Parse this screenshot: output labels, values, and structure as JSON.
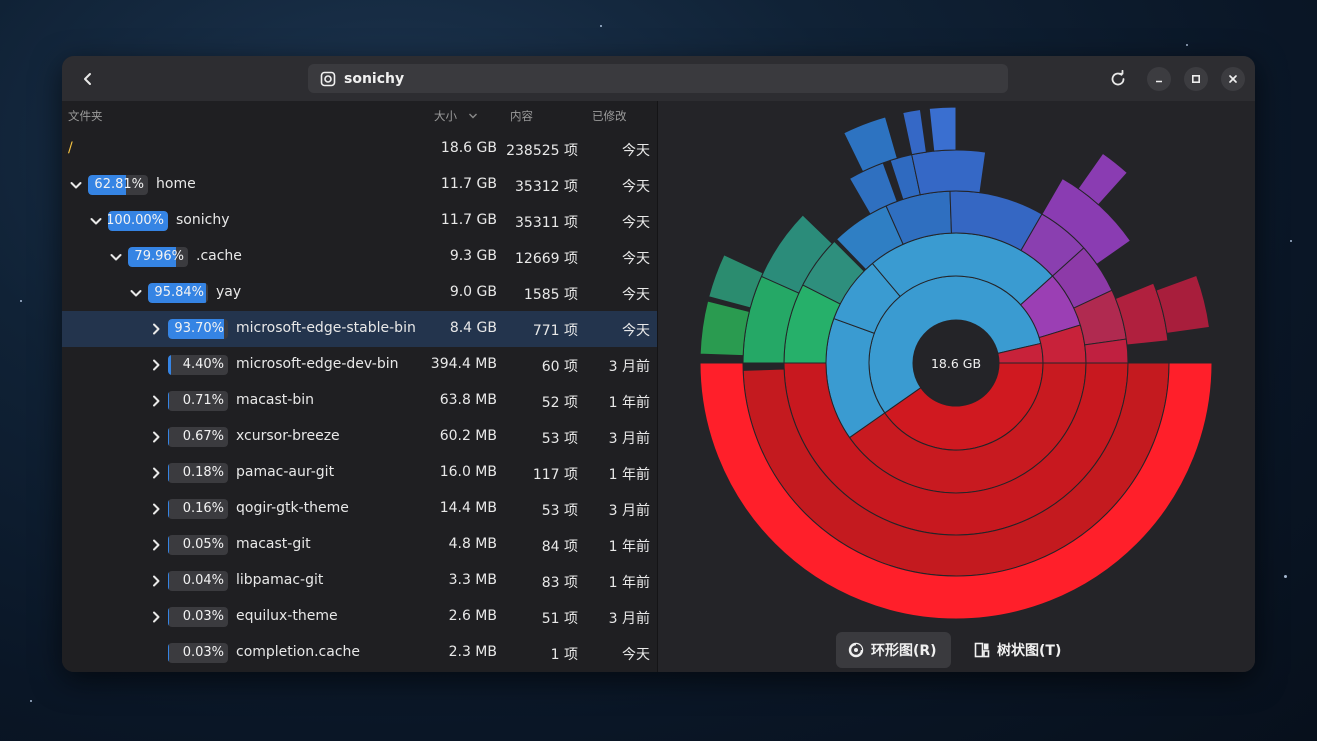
{
  "header": {
    "title": "sonichy"
  },
  "columns": {
    "folder": "文件夹",
    "size": "大小",
    "contents": "内容",
    "modified": "已修改"
  },
  "rows": [
    {
      "level": 0,
      "expander": "none",
      "percent": "",
      "fill": 0,
      "name": "/",
      "size": "18.6 GB",
      "items": "238525 项",
      "modified": "今天",
      "root": true
    },
    {
      "level": 1,
      "expander": "open",
      "percent": "62.81%",
      "fill": 0.6281,
      "name": "home",
      "size": "11.7 GB",
      "items": "35312 项",
      "modified": "今天"
    },
    {
      "level": 2,
      "expander": "open",
      "percent": "100.00%",
      "fill": 1.0,
      "name": "sonichy",
      "size": "11.7 GB",
      "items": "35311 项",
      "modified": "今天"
    },
    {
      "level": 3,
      "expander": "open",
      "percent": "79.96%",
      "fill": 0.7996,
      "name": ".cache",
      "size": "9.3 GB",
      "items": "12669 项",
      "modified": "今天"
    },
    {
      "level": 4,
      "expander": "open",
      "percent": "95.84%",
      "fill": 0.9584,
      "name": "yay",
      "size": "9.0 GB",
      "items": "1585 项",
      "modified": "今天"
    },
    {
      "level": 5,
      "expander": "closed",
      "percent": "93.70%",
      "fill": 0.937,
      "name": "microsoft-edge-stable-bin",
      "size": "8.4 GB",
      "items": "771 项",
      "modified": "今天",
      "selected": true
    },
    {
      "level": 5,
      "expander": "closed",
      "percent": "4.40%",
      "fill": 0.044,
      "name": "microsoft-edge-dev-bin",
      "size": "394.4 MB",
      "items": "60 项",
      "modified": "3 月前"
    },
    {
      "level": 5,
      "expander": "closed",
      "percent": "0.71%",
      "fill": 0.0071,
      "name": "macast-bin",
      "size": "63.8 MB",
      "items": "52 项",
      "modified": "1 年前"
    },
    {
      "level": 5,
      "expander": "closed",
      "percent": "0.67%",
      "fill": 0.0067,
      "name": "xcursor-breeze",
      "size": "60.2 MB",
      "items": "53 项",
      "modified": "3 月前"
    },
    {
      "level": 5,
      "expander": "closed",
      "percent": "0.18%",
      "fill": 0.0018,
      "name": "pamac-aur-git",
      "size": "16.0 MB",
      "items": "117 项",
      "modified": "1 年前"
    },
    {
      "level": 5,
      "expander": "closed",
      "percent": "0.16%",
      "fill": 0.0016,
      "name": "qogir-gtk-theme",
      "size": "14.4 MB",
      "items": "53 项",
      "modified": "3 月前"
    },
    {
      "level": 5,
      "expander": "closed",
      "percent": "0.05%",
      "fill": 0.0005,
      "name": "macast-git",
      "size": "4.8 MB",
      "items": "84 项",
      "modified": "1 年前"
    },
    {
      "level": 5,
      "expander": "closed",
      "percent": "0.04%",
      "fill": 0.0004,
      "name": "libpamac-git",
      "size": "3.3 MB",
      "items": "83 项",
      "modified": "1 年前"
    },
    {
      "level": 5,
      "expander": "closed",
      "percent": "0.03%",
      "fill": 0.0003,
      "name": "equilux-theme",
      "size": "2.6 MB",
      "items": "51 项",
      "modified": "3 月前"
    },
    {
      "level": 5,
      "expander": "none",
      "percent": "0.03%",
      "fill": 0.0003,
      "name": "completion.cache",
      "size": "2.3 MB",
      "items": "1 项",
      "modified": "今天"
    }
  ],
  "chart": {
    "center_label": "18.6 GB",
    "ring_button": "环形图(R)",
    "tree_button": "树状图(T)",
    "active_view": "ring"
  }
}
